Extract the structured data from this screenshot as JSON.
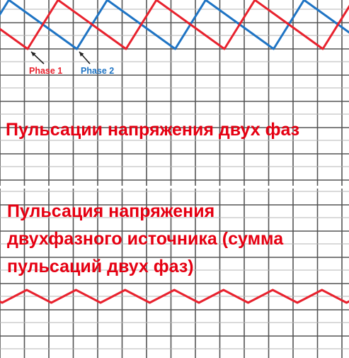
{
  "colors": {
    "phase1": "#e8222e",
    "phase2": "#1f74c4",
    "sum": "#e8222e",
    "grid_major": "#555555",
    "grid_minor": "#b4b4b4",
    "caption": "#e60012",
    "arrow": "#222222",
    "background": "#ffffff"
  },
  "labels": {
    "phase1": "Phase 1",
    "phase2": "Phase 2"
  },
  "captions": {
    "top": "Пульсации напряжения двух фаз",
    "bottom": [
      "Пульсация напряжения",
      "двухфазного источника (сумма",
      "пульсаций двух фаз)"
    ]
  },
  "waveforms": {
    "phase_count": 2,
    "phase_shift_fraction": 0.5,
    "top_shape": "sawtooth",
    "bottom_shape": "triangle"
  }
}
